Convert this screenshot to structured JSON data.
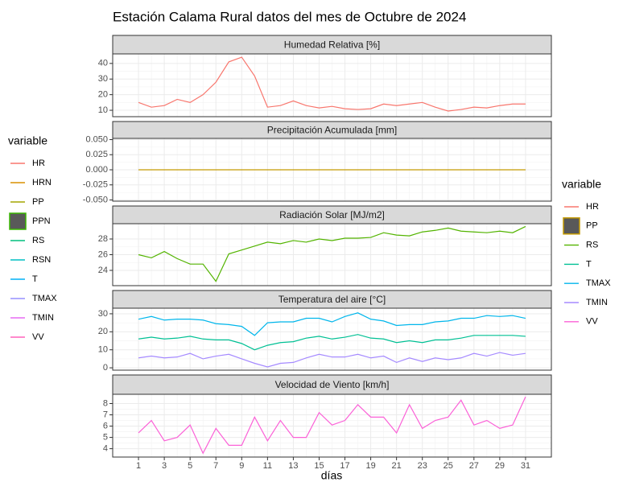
{
  "title": "Estación Calama Rural datos del mes de Octubre de 2024",
  "xlabel": "días",
  "x": [
    1,
    2,
    3,
    4,
    5,
    6,
    7,
    8,
    9,
    10,
    11,
    12,
    13,
    14,
    15,
    16,
    17,
    18,
    19,
    20,
    21,
    22,
    23,
    24,
    25,
    26,
    27,
    28,
    29,
    30,
    31
  ],
  "xlim": [
    -1,
    33
  ],
  "xticks": [
    1,
    3,
    5,
    7,
    9,
    11,
    13,
    15,
    17,
    19,
    21,
    23,
    25,
    27,
    29,
    31
  ],
  "legends": [
    {
      "title": "variable",
      "entries": [
        {
          "name": "HR",
          "color": "#F8766D",
          "key": "line"
        },
        {
          "name": "HRN",
          "color": "#D89000",
          "key": "line"
        },
        {
          "name": "PP",
          "color": "#A3A500",
          "key": "line"
        },
        {
          "name": "PPN",
          "color": "#39B600",
          "key": "box"
        },
        {
          "name": "RS",
          "color": "#00BF7D",
          "key": "line"
        },
        {
          "name": "RSN",
          "color": "#00BFC4",
          "key": "line"
        },
        {
          "name": "T",
          "color": "#00B0F6",
          "key": "line"
        },
        {
          "name": "TMAX",
          "color": "#9590FF",
          "key": "line"
        },
        {
          "name": "TMIN",
          "color": "#E76BF3",
          "key": "line"
        },
        {
          "name": "VV",
          "color": "#FF62BC",
          "key": "line"
        }
      ]
    },
    {
      "title": "variable",
      "entries": [
        {
          "name": "HR",
          "color": "#F8766D",
          "key": "line"
        },
        {
          "name": "PP",
          "color": "#C49A00",
          "key": "box"
        },
        {
          "name": "RS",
          "color": "#53B400",
          "key": "line"
        },
        {
          "name": "T",
          "color": "#00C094",
          "key": "line"
        },
        {
          "name": "TMAX",
          "color": "#00B6EB",
          "key": "line"
        },
        {
          "name": "TMIN",
          "color": "#A58AFF",
          "key": "line"
        },
        {
          "name": "VV",
          "color": "#FB61D7",
          "key": "line"
        }
      ]
    }
  ],
  "chart_data": [
    {
      "type": "line",
      "title": "Humedad Relativa [%]",
      "ylim": [
        5.9,
        46.1
      ],
      "yticks": [
        10,
        20,
        30,
        40
      ],
      "grid": true,
      "series": [
        {
          "name": "HR",
          "color": "#F8766D",
          "values": [
            15,
            12,
            13,
            17,
            15,
            20,
            28,
            41,
            44,
            32,
            12,
            13,
            16,
            13,
            11.5,
            12.5,
            11,
            10.5,
            11,
            14,
            13,
            14,
            15,
            12,
            9.5,
            10.5,
            12,
            11.5,
            13,
            14,
            14
          ]
        }
      ]
    },
    {
      "type": "line",
      "title": "Precipitación Acumulada [mm]",
      "ylim": [
        -0.052,
        0.052
      ],
      "yticks": [
        {
          "value": -0.05,
          "label": "-0.050"
        },
        {
          "value": -0.025,
          "label": "-0.025"
        },
        {
          "value": 0,
          "label": "0.000"
        },
        {
          "value": 0.025,
          "label": "0.025"
        },
        {
          "value": 0.05,
          "label": "0.050"
        }
      ],
      "grid": true,
      "series": [
        {
          "name": "PP",
          "color": "#C49A00",
          "values": [
            0,
            0,
            0,
            0,
            0,
            0,
            0,
            0,
            0,
            0,
            0,
            0,
            0,
            0,
            0,
            0,
            0,
            0,
            0,
            0,
            0,
            0,
            0,
            0,
            0,
            0,
            0,
            0,
            0,
            0,
            0
          ]
        }
      ]
    },
    {
      "type": "line",
      "title": "Radiación Solar [MJ/m2]",
      "ylim": [
        22.05,
        29.95
      ],
      "yticks": [
        24,
        26,
        28
      ],
      "grid": true,
      "series": [
        {
          "name": "RS",
          "color": "#53B400",
          "values": [
            26.0,
            25.6,
            26.4,
            25.5,
            24.8,
            24.8,
            22.6,
            26.1,
            26.6,
            27.1,
            27.6,
            27.4,
            27.8,
            27.6,
            28.0,
            27.8,
            28.1,
            28.1,
            28.2,
            28.8,
            28.5,
            28.4,
            28.9,
            29.1,
            29.4,
            29.0,
            28.9,
            28.8,
            29.0,
            28.8,
            29.6
          ]
        }
      ]
    },
    {
      "type": "line",
      "title": "Temperatura del aire [°C]",
      "ylim": [
        -1.3,
        33.1
      ],
      "yticks": [
        0,
        10,
        20,
        30
      ],
      "grid": true,
      "series": [
        {
          "name": "TMAX",
          "color": "#00B6EB",
          "values": [
            27,
            28.5,
            26.5,
            27,
            27,
            26.5,
            24.5,
            24,
            23,
            18,
            25,
            25.5,
            25.5,
            27.5,
            27.5,
            25.5,
            28.5,
            30.5,
            27,
            26,
            23.5,
            24,
            24,
            25.5,
            26,
            27.5,
            27.5,
            29,
            28.5,
            29,
            27.5
          ]
        },
        {
          "name": "T",
          "color": "#00C094",
          "values": [
            16,
            17,
            16,
            16.5,
            17.5,
            16,
            15.5,
            15.5,
            13.5,
            10,
            12.5,
            14,
            14.5,
            16.5,
            17.5,
            16,
            17,
            18.5,
            16.5,
            16,
            14,
            15,
            14,
            15.5,
            15.5,
            16.5,
            18,
            18,
            18,
            18,
            17.5
          ]
        },
        {
          "name": "TMIN",
          "color": "#A58AFF",
          "values": [
            5.5,
            6.5,
            5.5,
            6,
            8,
            5,
            6.5,
            7.5,
            5,
            2.5,
            0.5,
            2.5,
            3,
            5.5,
            7.5,
            6,
            6,
            7.5,
            5.5,
            6.5,
            3,
            5.5,
            3.5,
            5.5,
            4.5,
            5.5,
            8,
            6.5,
            8.5,
            7,
            8
          ]
        }
      ]
    },
    {
      "type": "line",
      "title": "Velocidad de Viento [km/h]",
      "ylim": [
        3.26,
        8.82
      ],
      "yticks": [
        4,
        5,
        6,
        7,
        8
      ],
      "grid": true,
      "series": [
        {
          "name": "VV",
          "color": "#FB61D7",
          "values": [
            5.4,
            6.5,
            4.7,
            5.0,
            6.1,
            3.6,
            5.8,
            4.3,
            4.3,
            6.8,
            4.7,
            6.5,
            5.0,
            5.0,
            7.2,
            6.1,
            6.5,
            7.9,
            6.8,
            6.8,
            5.4,
            7.9,
            5.8,
            6.5,
            6.8,
            8.3,
            6.1,
            6.5,
            5.8,
            6.1,
            8.6
          ]
        }
      ]
    }
  ]
}
